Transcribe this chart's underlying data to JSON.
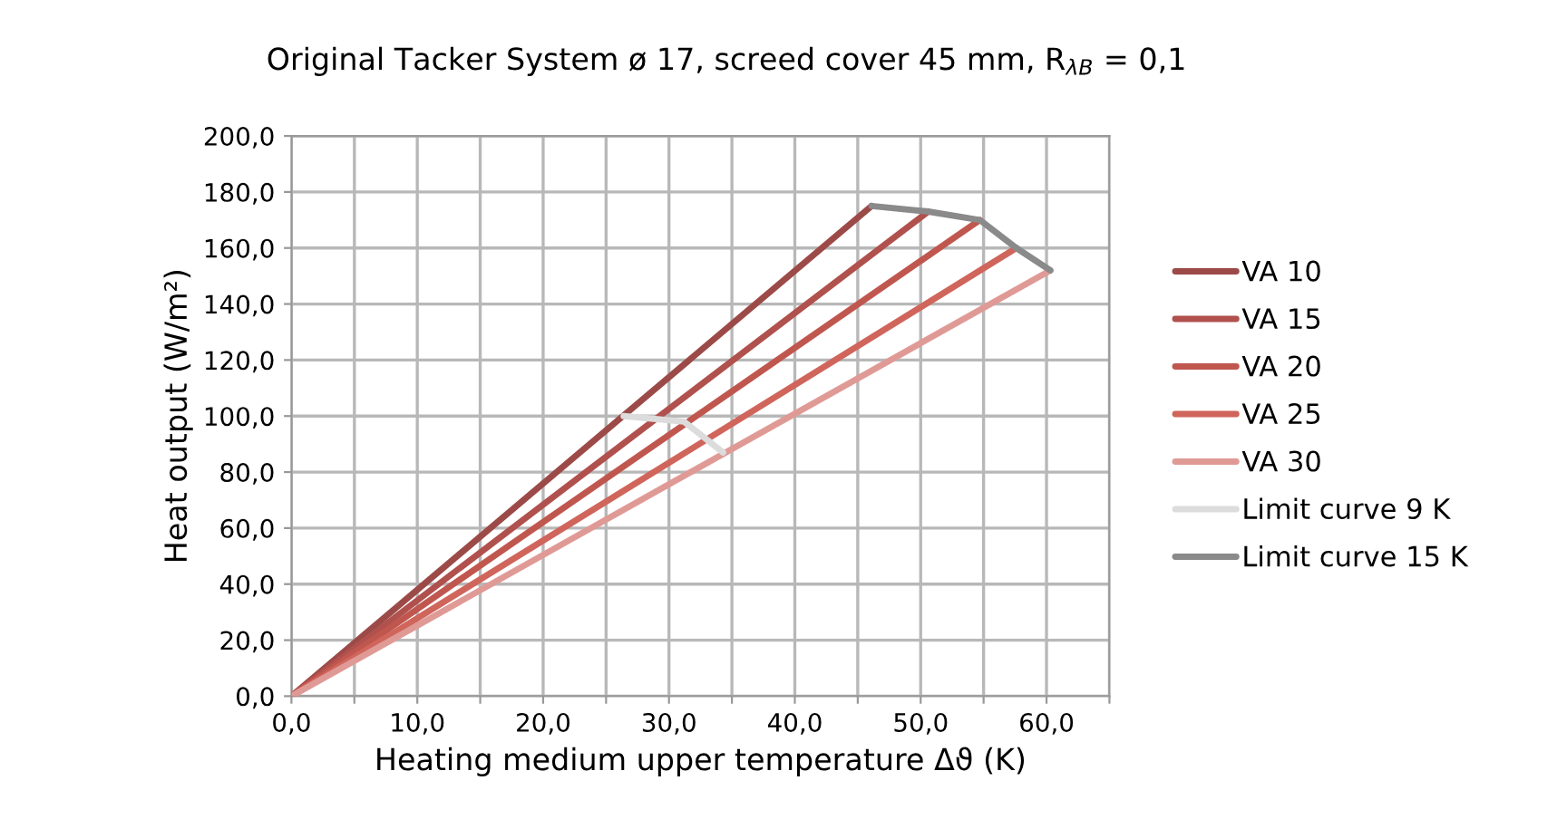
{
  "chart_data": {
    "type": "line",
    "title": "Original Tacker System ø 17, screed cover 45 mm, R$_{λB}$ = 0,1",
    "xlabel": "Heating medium upper temperature Δϑ (K)",
    "ylabel": "Heat output (W/m²)",
    "xlim": [
      0,
      65
    ],
    "ylim": [
      0,
      200
    ],
    "xticks": [
      {
        "value": 0,
        "label": "0,0"
      },
      {
        "value": 5,
        "label": null
      },
      {
        "value": 10,
        "label": "10,0"
      },
      {
        "value": 15,
        "label": null
      },
      {
        "value": 20,
        "label": "20,0"
      },
      {
        "value": 25,
        "label": null
      },
      {
        "value": 30,
        "label": "30,0"
      },
      {
        "value": 35,
        "label": null
      },
      {
        "value": 40,
        "label": "40,0"
      },
      {
        "value": 45,
        "label": null
      },
      {
        "value": 50,
        "label": "50,0"
      },
      {
        "value": 55,
        "label": null
      },
      {
        "value": 60,
        "label": "60,0"
      },
      {
        "value": 65,
        "label": null
      }
    ],
    "yticks": [
      {
        "value": 0,
        "label": "0,0"
      },
      {
        "value": 20,
        "label": "20,0"
      },
      {
        "value": 40,
        "label": "40,0"
      },
      {
        "value": 60,
        "label": "60,0"
      },
      {
        "value": 80,
        "label": "80,0"
      },
      {
        "value": 100,
        "label": "100,0"
      },
      {
        "value": 120,
        "label": "120,0"
      },
      {
        "value": 140,
        "label": "140,0"
      },
      {
        "value": 160,
        "label": "160,0"
      },
      {
        "value": 180,
        "label": "180,0"
      },
      {
        "value": 200,
        "label": "200,0"
      }
    ],
    "grid": true,
    "legend": "right",
    "marker": "none",
    "line_style": "solid",
    "series": [
      {
        "name": "VA 10",
        "color": "#9c4a48",
        "x": [
          0,
          46.1
        ],
        "values": [
          0,
          175
        ]
      },
      {
        "name": "VA 15",
        "color": "#b0514d",
        "x": [
          0,
          50.6
        ],
        "values": [
          0,
          173
        ]
      },
      {
        "name": "VA 20",
        "color": "#c0574f",
        "x": [
          0,
          54.7
        ],
        "values": [
          0,
          170
        ]
      },
      {
        "name": "VA 25",
        "color": "#d0655c",
        "x": [
          0,
          57.6
        ],
        "values": [
          0,
          160
        ]
      },
      {
        "name": "VA 30",
        "color": "#e09a96",
        "x": [
          0,
          60.3
        ],
        "values": [
          0,
          152
        ]
      },
      {
        "name": "Limit curve 9 K",
        "color": "#dcdcdc",
        "x": [
          26.4,
          31.2,
          34.3
        ],
        "values": [
          100,
          98,
          87
        ]
      },
      {
        "name": "Limit curve 15 K",
        "color": "#8a8a8a",
        "x": [
          46.1,
          50.6,
          54.7,
          57.6,
          60.3
        ],
        "values": [
          175,
          173,
          170,
          160,
          152
        ]
      }
    ]
  }
}
